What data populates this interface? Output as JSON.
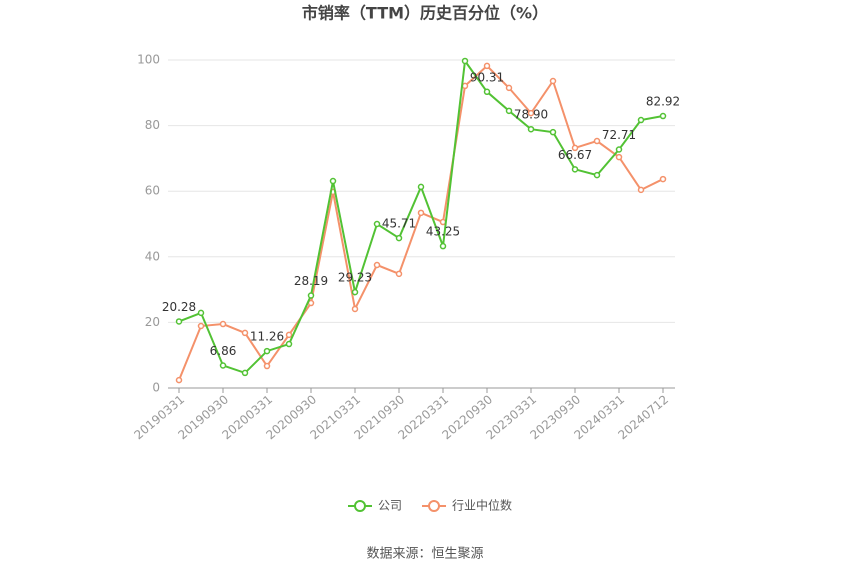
{
  "chart_data": {
    "type": "line",
    "title": "市销率（TTM）历史百分位（%）",
    "source": "数据来源：恒生聚源",
    "categories": [
      "20190331",
      null,
      "20190930",
      null,
      "20200331",
      null,
      "20200930",
      null,
      "20210331",
      null,
      "20210930",
      null,
      "20220331",
      null,
      "20220930",
      null,
      "20230331",
      null,
      "20230930",
      null,
      "20240331",
      null,
      "20240712"
    ],
    "series": [
      {
        "name": "公司",
        "color": "#52c234",
        "values": [
          20.28,
          22.9,
          6.86,
          4.6,
          11.26,
          13.4,
          28.19,
          63.1,
          29.23,
          50.0,
          45.71,
          61.3,
          43.25,
          99.7,
          90.31,
          84.5,
          78.9,
          78.0,
          66.67,
          64.9,
          72.71,
          81.7,
          82.92
        ],
        "value_labels": [
          "20.28",
          null,
          "6.86",
          null,
          "11.26",
          null,
          "28.19",
          null,
          "29.23",
          null,
          "45.71",
          null,
          "43.25",
          null,
          "90.31",
          null,
          "78.90",
          null,
          "66.67",
          null,
          "72.71",
          null,
          "82.92"
        ]
      },
      {
        "name": "行业中位数",
        "color": "#f4916a",
        "values": [
          2.4,
          18.9,
          19.5,
          16.8,
          6.7,
          16.2,
          25.9,
          59.8,
          24.1,
          37.5,
          34.8,
          53.4,
          50.6,
          92.1,
          98.2,
          91.5,
          83.8,
          93.6,
          73.2,
          75.3,
          70.4,
          60.4,
          63.7
        ]
      }
    ],
    "ylim": [
      0,
      100
    ],
    "yticks": [
      0,
      20,
      40,
      60,
      80,
      100
    ],
    "grid": true,
    "legend": "bottom"
  }
}
